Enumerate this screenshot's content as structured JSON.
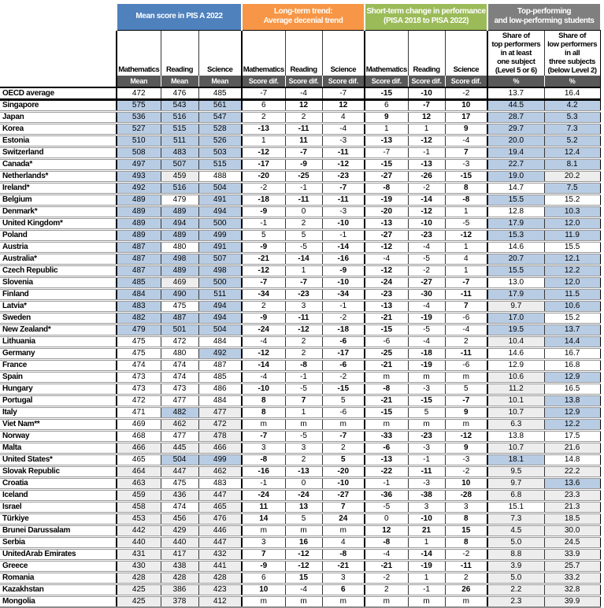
{
  "colors": {
    "group_blue": "#4f81bd",
    "group_orange": "#f79646",
    "group_green": "#9bbb59",
    "group_gray": "#7f7f7f",
    "measure_band": "#595959",
    "cell_above_oecd_avg_blue": "#b8cce4",
    "cell_below_oecd_avg_gray": "#ededed"
  },
  "groups": [
    {
      "line1": "Mean score in PIS A 2022",
      "line2": ""
    },
    {
      "line1": "Long-term trend:",
      "line2": "Average decenial trend"
    },
    {
      "line1": "Short-term change in performance",
      "line2": "(PISA 2018 to PISA 2022)"
    },
    {
      "line1": "Top-performing",
      "line2": "and low-performing students"
    }
  ],
  "subjects": [
    "Mathematics",
    "Reading",
    "Science",
    "Mathematics",
    "Reading",
    "Science",
    "Mathematics",
    "Reading",
    "Science"
  ],
  "share_headers": [
    "Share of\ntop performers\nin at least\none subject\n(Level 5 or 6)",
    "Share of\nlow performers\nin all\nthree subjects\n(below Level 2)"
  ],
  "measures": [
    "Mean",
    "Mean",
    "Mean",
    "Score dif.",
    "Score dif.",
    "Score dif.",
    "Score dif.",
    "Score dif.",
    "Score dif.",
    "%",
    "%"
  ],
  "rows": [
    {
      "country": "OECD average",
      "values": [
        "472",
        "476",
        "485",
        "-7",
        "-4",
        "-7",
        "-15",
        "-10",
        "-2",
        "13.7",
        "16.4"
      ],
      "shades": "wwwwwwwwwww",
      "bold": "00000011000"
    },
    {
      "country": "Singapore",
      "values": [
        "575",
        "543",
        "561",
        "6",
        "12",
        "12",
        "6",
        "-7",
        "10",
        "44.5",
        "4.2"
      ],
      "shades": "bbbwwwwwwbb",
      "bold": "00001101100"
    },
    {
      "country": "Japan",
      "values": [
        "536",
        "516",
        "547",
        "2",
        "2",
        "4",
        "9",
        "12",
        "17",
        "28.7",
        "5.3"
      ],
      "shades": "bbbwwwwwwbb",
      "bold": "00000011100"
    },
    {
      "country": "Korea",
      "values": [
        "527",
        "515",
        "528",
        "-13",
        "-11",
        "-4",
        "1",
        "1",
        "9",
        "29.7",
        "7.3"
      ],
      "shades": "bbbwwwwwwbb",
      "bold": "00011000100"
    },
    {
      "country": "Estonia",
      "values": [
        "510",
        "511",
        "526",
        "1",
        "11",
        "-3",
        "-13",
        "-12",
        "-4",
        "20.0",
        "5.2"
      ],
      "shades": "bbbwwwwwwbb",
      "bold": "00001011000"
    },
    {
      "country": "Switzerland",
      "values": [
        "508",
        "483",
        "503",
        "-12",
        "-7",
        "-11",
        "-7",
        "-1",
        "7",
        "19.4",
        "12.4"
      ],
      "shades": "bbbwwwwwwbb",
      "bold": "00011100100"
    },
    {
      "country": "Canada*",
      "values": [
        "497",
        "507",
        "515",
        "-17",
        "-9",
        "-12",
        "-15",
        "-13",
        "-3",
        "22.7",
        "8.1"
      ],
      "shades": "bbbwwwwwwbb",
      "bold": "00011111000"
    },
    {
      "country": "Netherlands*",
      "values": [
        "493",
        "459",
        "488",
        "-20",
        "-25",
        "-23",
        "-27",
        "-26",
        "-15",
        "19.0",
        "20.2"
      ],
      "shades": "bgwwwwwwwbg",
      "bold": "00011111100"
    },
    {
      "country": "Ireland*",
      "values": [
        "492",
        "516",
        "504",
        "-2",
        "-1",
        "-7",
        "-8",
        "-2",
        "8",
        "14.7",
        "7.5"
      ],
      "shades": "bbbwwwwwwwb",
      "bold": "00000110100"
    },
    {
      "country": "Belgium",
      "values": [
        "489",
        "479",
        "491",
        "-18",
        "-11",
        "-11",
        "-19",
        "-14",
        "-8",
        "15.5",
        "15.2"
      ],
      "shades": "bwbwwwwwwbw",
      "bold": "00011111100"
    },
    {
      "country": "Denmark*",
      "values": [
        "489",
        "489",
        "494",
        "-9",
        "0",
        "-3",
        "-20",
        "-12",
        "1",
        "12.8",
        "10.3"
      ],
      "shades": "bbbwwwwwwwb",
      "bold": "00010011000"
    },
    {
      "country": "United Kingdom*",
      "values": [
        "489",
        "494",
        "500",
        "-1",
        "2",
        "-10",
        "-13",
        "-10",
        "-5",
        "17.9",
        "12.0"
      ],
      "shades": "bbbwwwwwwbb",
      "bold": "00000111000"
    },
    {
      "country": "Poland",
      "values": [
        "489",
        "489",
        "499",
        "5",
        "5",
        "-1",
        "-27",
        "-23",
        "-12",
        "15.3",
        "11.9"
      ],
      "shades": "bbbwwwwwwbb",
      "bold": "00000011100"
    },
    {
      "country": "Austria",
      "values": [
        "487",
        "480",
        "491",
        "-9",
        "-5",
        "-14",
        "-12",
        "-4",
        "1",
        "14.6",
        "15.5"
      ],
      "shades": "bwbwwwwwwww",
      "bold": "00010110000"
    },
    {
      "country": "Australia*",
      "values": [
        "487",
        "498",
        "507",
        "-21",
        "-14",
        "-16",
        "-4",
        "-5",
        "4",
        "20.7",
        "12.1"
      ],
      "shades": "bbbwwwwwwbb",
      "bold": "00011100000"
    },
    {
      "country": "Czech Republic",
      "values": [
        "487",
        "489",
        "498",
        "-12",
        "1",
        "-9",
        "-12",
        "-2",
        "1",
        "15.5",
        "12.2"
      ],
      "shades": "bbbwwwwwwbb",
      "bold": "00010110000"
    },
    {
      "country": "Slovenia",
      "values": [
        "485",
        "469",
        "500",
        "-7",
        "-7",
        "-10",
        "-24",
        "-27",
        "-7",
        "13.0",
        "12.0"
      ],
      "shades": "bgbwwwwwwwb",
      "bold": "00011111100"
    },
    {
      "country": "Finland",
      "values": [
        "484",
        "490",
        "511",
        "-34",
        "-23",
        "-34",
        "-23",
        "-30",
        "-11",
        "17.9",
        "11.5"
      ],
      "shades": "bbbwwwwwwbb",
      "bold": "00011111100"
    },
    {
      "country": "Latvia*",
      "values": [
        "483",
        "475",
        "494",
        "2",
        "3",
        "-1",
        "-13",
        "-4",
        "7",
        "9.7",
        "10.6"
      ],
      "shades": "bwbwwwwwwgb",
      "bold": "00000010100"
    },
    {
      "country": "Sweden",
      "values": [
        "482",
        "487",
        "494",
        "-9",
        "-11",
        "-2",
        "-21",
        "-19",
        "-6",
        "17.0",
        "15.2"
      ],
      "shades": "bbbwwwwwwbw",
      "bold": "00011011000"
    },
    {
      "country": "New Zealand*",
      "values": [
        "479",
        "501",
        "504",
        "-24",
        "-12",
        "-18",
        "-15",
        "-5",
        "-4",
        "19.5",
        "13.7"
      ],
      "shades": "bbbwwwwwwbb",
      "bold": "00011110000"
    },
    {
      "country": "Lithuania",
      "values": [
        "475",
        "472",
        "484",
        "-4",
        "2",
        "-6",
        "-6",
        "-4",
        "2",
        "10.4",
        "14.4"
      ],
      "shades": "wwwwwwwwwgb",
      "bold": "00000100000"
    },
    {
      "country": "Germany",
      "values": [
        "475",
        "480",
        "492",
        "-12",
        "2",
        "-17",
        "-25",
        "-18",
        "-11",
        "14.6",
        "16.7"
      ],
      "shades": "wwbwwwwwwww",
      "bold": "00010111100"
    },
    {
      "country": "France",
      "values": [
        "474",
        "474",
        "487",
        "-14",
        "-8",
        "-6",
        "-21",
        "-19",
        "-6",
        "12.9",
        "16.8"
      ],
      "shades": "wwwwwwwwwww",
      "bold": "00011111000"
    },
    {
      "country": "Spain",
      "values": [
        "473",
        "474",
        "485",
        "-4",
        "-1",
        "-2",
        "m",
        "m",
        "m",
        "10.6",
        "12.9"
      ],
      "shades": "wwwwwwwwwgb",
      "bold": "00000000000"
    },
    {
      "country": "Hungary",
      "values": [
        "473",
        "473",
        "486",
        "-10",
        "-5",
        "-15",
        "-8",
        "-3",
        "5",
        "11.2",
        "16.5"
      ],
      "shades": "wwwwwwwwwgw",
      "bold": "00010110000"
    },
    {
      "country": "Portugal",
      "values": [
        "472",
        "477",
        "484",
        "8",
        "7",
        "5",
        "-21",
        "-15",
        "-7",
        "10.1",
        "13.8"
      ],
      "shades": "wwwwwwwwwgb",
      "bold": "00011011100"
    },
    {
      "country": "Italy",
      "values": [
        "471",
        "482",
        "477",
        "8",
        "1",
        "-6",
        "-15",
        "5",
        "9",
        "10.7",
        "12.9"
      ],
      "shades": "wbgwwwwwwgb",
      "bold": "00010010100"
    },
    {
      "country": "Viet Nam**",
      "values": [
        "469",
        "462",
        "472",
        "m",
        "m",
        "m",
        "m",
        "m",
        "m",
        "6.3",
        "12.2"
      ],
      "shades": "wggwwwwwwgb",
      "bold": "00000000000"
    },
    {
      "country": "Norway",
      "values": [
        "468",
        "477",
        "478",
        "-7",
        "-5",
        "-7",
        "-33",
        "-23",
        "-12",
        "13.8",
        "17.5"
      ],
      "shades": "wwgwwwwwwww",
      "bold": "00010111100"
    },
    {
      "country": "Malta",
      "values": [
        "466",
        "445",
        "466",
        "3",
        "3",
        "2",
        "-6",
        "-3",
        "9",
        "10.7",
        "21.6"
      ],
      "shades": "gggwwwwwwgg",
      "bold": "00000010100"
    },
    {
      "country": "United States*",
      "values": [
        "465",
        "504",
        "499",
        "-8",
        "2",
        "5",
        "-13",
        "-1",
        "-3",
        "18.1",
        "14.8"
      ],
      "shades": "wbbwwwwwwbw",
      "bold": "00010110000"
    },
    {
      "country": "Slovak Republic",
      "values": [
        "464",
        "447",
        "462",
        "-16",
        "-13",
        "-20",
        "-22",
        "-11",
        "-2",
        "9.5",
        "22.2"
      ],
      "shades": "gggwwwwwwgg",
      "bold": "00011111000"
    },
    {
      "country": "Croatia",
      "values": [
        "463",
        "475",
        "483",
        "-1",
        "0",
        "-10",
        "-1",
        "-3",
        "10",
        "9.7",
        "13.6"
      ],
      "shades": "gwwwwwwwwgb",
      "bold": "00000100100"
    },
    {
      "country": "Iceland",
      "values": [
        "459",
        "436",
        "447",
        "-24",
        "-24",
        "-27",
        "-36",
        "-38",
        "-28",
        "6.8",
        "23.3"
      ],
      "shades": "gggwwwwwwgg",
      "bold": "00011111100"
    },
    {
      "country": "Israel",
      "values": [
        "458",
        "474",
        "465",
        "11",
        "13",
        "7",
        "-5",
        "3",
        "3",
        "15.1",
        "21.3"
      ],
      "shades": "gwgwwwwwwwg",
      "bold": "00011100000"
    },
    {
      "country": "Türkiye",
      "values": [
        "453",
        "456",
        "476",
        "14",
        "5",
        "24",
        "0",
        "-10",
        "8",
        "7.3",
        "18.5"
      ],
      "shades": "gggwwwwwwgg",
      "bold": "00010101100"
    },
    {
      "country": "Brunei Darussalam",
      "values": [
        "442",
        "429",
        "446",
        "m",
        "m",
        "m",
        "12",
        "21",
        "15",
        "4.5",
        "30.0"
      ],
      "shades": "gggwwwwwwgg",
      "bold": "00000011100"
    },
    {
      "country": "Serbia",
      "values": [
        "440",
        "440",
        "447",
        "3",
        "16",
        "4",
        "-8",
        "1",
        "8",
        "5.0",
        "24.5"
      ],
      "shades": "gggwwwwwwgg",
      "bold": "00001010100"
    },
    {
      "country": "UnitedArab Emirates",
      "values": [
        "431",
        "417",
        "432",
        "7",
        "-12",
        "-8",
        "-4",
        "-14",
        "-2",
        "8.8",
        "33.9"
      ],
      "shades": "gggwwwwwwgg",
      "bold": "00011101000"
    },
    {
      "country": "Greece",
      "values": [
        "430",
        "438",
        "441",
        "-9",
        "-12",
        "-21",
        "-21",
        "-19",
        "-11",
        "3.9",
        "25.7"
      ],
      "shades": "gggwwwwwwgg",
      "bold": "00011111100"
    },
    {
      "country": "Romania",
      "values": [
        "428",
        "428",
        "428",
        "6",
        "15",
        "3",
        "-2",
        "1",
        "2",
        "5.0",
        "33.2"
      ],
      "shades": "gggwwwwwwgg",
      "bold": "00001000000"
    },
    {
      "country": "Kazakhstan",
      "values": [
        "425",
        "386",
        "423",
        "10",
        "-4",
        "6",
        "2",
        "-1",
        "26",
        "2.2",
        "32.8"
      ],
      "shades": "gggwwwwwwgg",
      "bold": "00010100100"
    },
    {
      "country": "Mongolia",
      "values": [
        "425",
        "378",
        "412",
        "m",
        "m",
        "m",
        "m",
        "m",
        "m",
        "2.3",
        "39.9"
      ],
      "shades": "gggwwwwwwgg",
      "bold": "00000000000"
    }
  ]
}
